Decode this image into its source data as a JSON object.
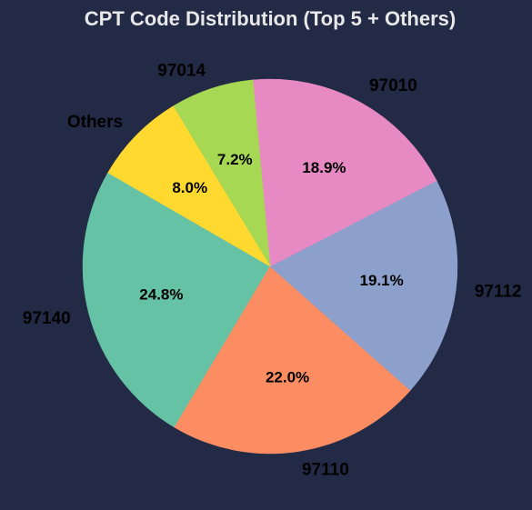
{
  "chart_data": {
    "type": "pie",
    "title": "CPT Code Distribution (Top 5 + Others)",
    "slices": [
      {
        "label": "97140",
        "value": 24.8,
        "pct_label": "24.8%",
        "color": "#66c2a5"
      },
      {
        "label": "97110",
        "value": 22.0,
        "pct_label": "22.0%",
        "color": "#fc8d62"
      },
      {
        "label": "97112",
        "value": 19.1,
        "pct_label": "19.1%",
        "color": "#8da0cb"
      },
      {
        "label": "97010",
        "value": 18.9,
        "pct_label": "18.9%",
        "color": "#e78ac3"
      },
      {
        "label": "97014",
        "value": 7.2,
        "pct_label": "7.2%",
        "color": "#a6d854"
      },
      {
        "label": "Others",
        "value": 8.0,
        "pct_label": "8.0%",
        "color": "#ffd92f"
      }
    ],
    "start_angle_deg": 150,
    "direction": "counterclockwise"
  },
  "colors": {
    "background": "#222a46",
    "title_text": "#e8e8e8",
    "label_text": "#000000"
  }
}
